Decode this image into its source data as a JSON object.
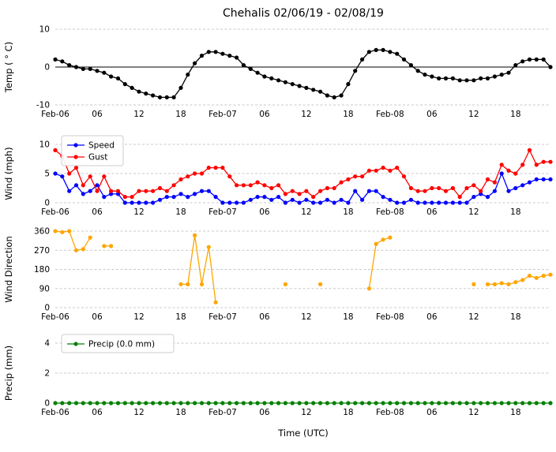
{
  "chart_data": {
    "type": "line",
    "title": "Chehalis 02/06/19 - 02/08/19",
    "xlabel": "Time (UTC)",
    "x_unit": "hours since Feb-06 00:00 UTC",
    "xlim": [
      0,
      71
    ],
    "xtick_positions": [
      0,
      6,
      12,
      18,
      24,
      30,
      36,
      42,
      48,
      54,
      60,
      66
    ],
    "xtick_labels": [
      "Feb-06",
      "06",
      "12",
      "18",
      "Feb-07",
      "06",
      "12",
      "18",
      "Feb-08",
      "06",
      "12",
      "18"
    ],
    "grid": "horizontal-dashed",
    "legend_position": "upper-left",
    "panels": [
      {
        "ylabel": "Temp ( ° C)",
        "ylim": [
          -10,
          10
        ],
        "yticks": [
          -10,
          0,
          10
        ],
        "zero_line": true,
        "legend": false,
        "series": [
          {
            "name": "Temp",
            "color": "#000000",
            "values": [
              2,
              1.5,
              0.5,
              0,
              -0.5,
              -0.5,
              -1,
              -1.5,
              -2.5,
              -3,
              -4.5,
              -5.5,
              -6.5,
              -7,
              -7.5,
              -8,
              -8,
              -8,
              -5.5,
              -2,
              1,
              3,
              4,
              4,
              3.5,
              3,
              2.5,
              0.5,
              -0.5,
              -1.5,
              -2.5,
              -3,
              -3.5,
              -4,
              -4.5,
              -5,
              -5.5,
              -6,
              -6.5,
              -7.5,
              -8,
              -7.5,
              -4.5,
              -1,
              2,
              4,
              4.5,
              4.5,
              4,
              3.5,
              2,
              0.5,
              -1,
              -2,
              -2.5,
              -3,
              -3,
              -3,
              -3.5,
              -3.5,
              -3.5,
              -3,
              -3,
              -2.5,
              -2,
              -1.5,
              0.5,
              1.5,
              2,
              2,
              2,
              0
            ]
          }
        ]
      },
      {
        "ylabel": "Wind (mph)",
        "ylim": [
          0,
          10
        ],
        "yticks": [
          0,
          5,
          10
        ],
        "zero_line": false,
        "legend": true,
        "series": [
          {
            "name": "Speed",
            "color": "#0000ff",
            "values": [
              5,
              4.5,
              2,
              3,
              1.5,
              2,
              3,
              1,
              1.5,
              1.5,
              0,
              0,
              0,
              0,
              0,
              0.5,
              1,
              1,
              1.5,
              1,
              1.5,
              2,
              2,
              1,
              0,
              0,
              0,
              0,
              0.5,
              1,
              1,
              0.5,
              1,
              0,
              0.5,
              0,
              0.5,
              0,
              0,
              0.5,
              0,
              0.5,
              0,
              2,
              0.5,
              2,
              2,
              1,
              0.5,
              0,
              0,
              0.5,
              0,
              0,
              0,
              0,
              0,
              0,
              0,
              0,
              1,
              1.5,
              1,
              2,
              5,
              2,
              2.5,
              3,
              3.5,
              4,
              4,
              4
            ]
          },
          {
            "name": "Gust",
            "color": "#ff0000",
            "values": [
              9,
              8,
              5,
              6,
              3,
              4.5,
              2,
              4.5,
              2,
              2,
              1,
              1,
              2,
              2,
              2,
              2.5,
              2,
              3,
              4,
              4.5,
              5,
              5,
              6,
              6,
              6,
              4.5,
              3,
              3,
              3,
              3.5,
              3,
              2.5,
              3,
              1.5,
              2,
              1.5,
              2,
              1,
              2,
              2.5,
              2.5,
              3.5,
              4,
              4.5,
              4.5,
              5.5,
              5.5,
              6,
              5.5,
              6,
              4.5,
              2.5,
              2,
              2,
              2.5,
              2.5,
              2,
              2.5,
              1,
              2.5,
              3,
              2,
              4,
              3.5,
              6.5,
              5.5,
              5,
              6.5,
              9,
              6.5,
              7,
              7
            ]
          }
        ]
      },
      {
        "ylabel": "Wind Direction",
        "ylim": [
          0,
          360
        ],
        "yticks": [
          0,
          90,
          180,
          270,
          360
        ],
        "zero_line": false,
        "legend": false,
        "series": [
          {
            "name": "Direction",
            "color": "#ffa500",
            "values": [
              360,
              355,
              360,
              270,
              275,
              330,
              null,
              290,
              290,
              null,
              null,
              null,
              null,
              null,
              null,
              null,
              null,
              null,
              110,
              110,
              340,
              110,
              285,
              25,
              null,
              null,
              null,
              null,
              null,
              null,
              null,
              null,
              null,
              110,
              null,
              null,
              null,
              null,
              110,
              null,
              null,
              null,
              null,
              null,
              null,
              90,
              300,
              320,
              330,
              null,
              null,
              null,
              null,
              null,
              null,
              null,
              null,
              null,
              null,
              null,
              110,
              null,
              110,
              110,
              115,
              110,
              120,
              130,
              150,
              140,
              150,
              155
            ]
          }
        ]
      },
      {
        "ylabel": "Precip (mm)",
        "ylim": [
          0,
          4
        ],
        "yticks": [
          0,
          2,
          4
        ],
        "zero_line": false,
        "legend": true,
        "series": [
          {
            "name": "Precip (0.0 mm)",
            "color": "#008000",
            "values": [
              0,
              0,
              0,
              0,
              0,
              0,
              0,
              0,
              0,
              0,
              0,
              0,
              0,
              0,
              0,
              0,
              0,
              0,
              0,
              0,
              0,
              0,
              0,
              0,
              0,
              0,
              0,
              0,
              0,
              0,
              0,
              0,
              0,
              0,
              0,
              0,
              0,
              0,
              0,
              0,
              0,
              0,
              0,
              0,
              0,
              0,
              0,
              0,
              0,
              0,
              0,
              0,
              0,
              0,
              0,
              0,
              0,
              0,
              0,
              0,
              0,
              0,
              0,
              0,
              0,
              0,
              0,
              0,
              0,
              0,
              0,
              0
            ]
          }
        ]
      }
    ]
  }
}
